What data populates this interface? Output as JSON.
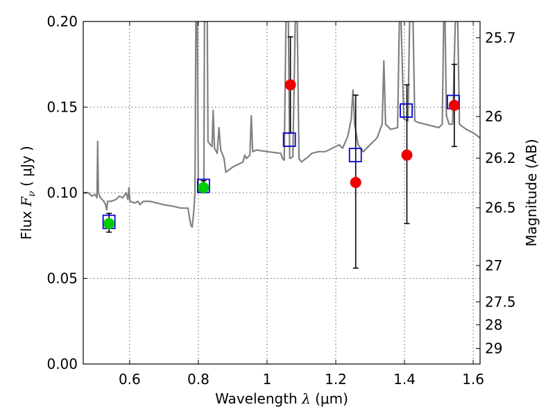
{
  "chart_data": {
    "type": "scatter",
    "title": "",
    "xlabel_prefix": "Wavelength ",
    "xlabel_var": "λ",
    "xlabel_unit": " (μm)",
    "ylabel_prefix": "Flux ",
    "ylabel_var": "F",
    "ylabel_sub": "ν",
    "ylabel_unit": " ( μJy )",
    "y2label": "Magnitude (AB)",
    "xlim": [
      0.465,
      1.62
    ],
    "ylim": [
      0.0,
      0.2
    ],
    "grid": true,
    "x_ticks": [
      0.6,
      0.8,
      1.0,
      1.2,
      1.4,
      1.6
    ],
    "x_tick_labels": [
      "0.6",
      "0.8",
      "1",
      "1.2",
      "1.4",
      "1.6"
    ],
    "y_ticks": [
      0.0,
      0.05,
      0.1,
      0.15,
      0.2
    ],
    "y_tick_labels": [
      "0.00",
      "0.05",
      "0.10",
      "0.15",
      "0.20"
    ],
    "y2_ticks": [
      {
        "flux": 0.1905,
        "label": "25.7"
      },
      {
        "flux": 0.1445,
        "label": "26"
      },
      {
        "flux": 0.1202,
        "label": "26.2"
      },
      {
        "flux": 0.0912,
        "label": "26.5"
      },
      {
        "flux": 0.0575,
        "label": "27"
      },
      {
        "flux": 0.0363,
        "label": "27.5"
      },
      {
        "flux": 0.0229,
        "label": "28"
      },
      {
        "flux": 0.0091,
        "label": "29"
      }
    ],
    "model_spectrum": {
      "color": "#808080",
      "points": [
        [
          0.465,
          0.1
        ],
        [
          0.48,
          0.1
        ],
        [
          0.49,
          0.098
        ],
        [
          0.5,
          0.099
        ],
        [
          0.505,
          0.097
        ],
        [
          0.507,
          0.13
        ],
        [
          0.509,
          0.1
        ],
        [
          0.515,
          0.097
        ],
        [
          0.525,
          0.095
        ],
        [
          0.53,
          0.093
        ],
        [
          0.533,
          0.09
        ],
        [
          0.536,
          0.095
        ],
        [
          0.545,
          0.095
        ],
        [
          0.56,
          0.096
        ],
        [
          0.57,
          0.098
        ],
        [
          0.58,
          0.097
        ],
        [
          0.59,
          0.1
        ],
        [
          0.595,
          0.096
        ],
        [
          0.598,
          0.103
        ],
        [
          0.601,
          0.095
        ],
        [
          0.615,
          0.094
        ],
        [
          0.625,
          0.095
        ],
        [
          0.63,
          0.093
        ],
        [
          0.64,
          0.095
        ],
        [
          0.66,
          0.095
        ],
        [
          0.7,
          0.093
        ],
        [
          0.73,
          0.092
        ],
        [
          0.75,
          0.091
        ],
        [
          0.77,
          0.091
        ],
        [
          0.778,
          0.081
        ],
        [
          0.782,
          0.08
        ],
        [
          0.787,
          0.09
        ],
        [
          0.79,
          0.1
        ],
        [
          0.793,
          0.2
        ],
        [
          0.797,
          0.2
        ],
        [
          0.8,
          0.1
        ],
        [
          0.81,
          0.102
        ],
        [
          0.816,
          0.103
        ],
        [
          0.818,
          0.2
        ],
        [
          0.826,
          0.2
        ],
        [
          0.828,
          0.13
        ],
        [
          0.835,
          0.128
        ],
        [
          0.84,
          0.127
        ],
        [
          0.843,
          0.148
        ],
        [
          0.847,
          0.126
        ],
        [
          0.855,
          0.123
        ],
        [
          0.86,
          0.138
        ],
        [
          0.865,
          0.125
        ],
        [
          0.875,
          0.12
        ],
        [
          0.88,
          0.112
        ],
        [
          0.9,
          0.115
        ],
        [
          0.92,
          0.117
        ],
        [
          0.93,
          0.118
        ],
        [
          0.935,
          0.122
        ],
        [
          0.94,
          0.12
        ],
        [
          0.95,
          0.122
        ],
        [
          0.954,
          0.145
        ],
        [
          0.958,
          0.124
        ],
        [
          0.97,
          0.125
        ],
        [
          1.0,
          0.124
        ],
        [
          1.04,
          0.123
        ],
        [
          1.045,
          0.12
        ],
        [
          1.05,
          0.119
        ],
        [
          1.055,
          0.2
        ],
        [
          1.062,
          0.2
        ],
        [
          1.066,
          0.12
        ],
        [
          1.075,
          0.121
        ],
        [
          1.082,
          0.2
        ],
        [
          1.088,
          0.2
        ],
        [
          1.093,
          0.12
        ],
        [
          1.1,
          0.118
        ],
        [
          1.12,
          0.121
        ],
        [
          1.13,
          0.123
        ],
        [
          1.15,
          0.124
        ],
        [
          1.17,
          0.124
        ],
        [
          1.19,
          0.126
        ],
        [
          1.2,
          0.127
        ],
        [
          1.21,
          0.128
        ],
        [
          1.22,
          0.126
        ],
        [
          1.235,
          0.133
        ],
        [
          1.245,
          0.143
        ],
        [
          1.25,
          0.16
        ],
        [
          1.255,
          0.14
        ],
        [
          1.265,
          0.128
        ],
        [
          1.28,
          0.124
        ],
        [
          1.3,
          0.128
        ],
        [
          1.32,
          0.132
        ],
        [
          1.335,
          0.14
        ],
        [
          1.34,
          0.177
        ],
        [
          1.345,
          0.14
        ],
        [
          1.36,
          0.137
        ],
        [
          1.38,
          0.138
        ],
        [
          1.385,
          0.2
        ],
        [
          1.39,
          0.2
        ],
        [
          1.398,
          0.143
        ],
        [
          1.41,
          0.142
        ],
        [
          1.415,
          0.2
        ],
        [
          1.425,
          0.2
        ],
        [
          1.43,
          0.142
        ],
        [
          1.44,
          0.141
        ],
        [
          1.46,
          0.14
        ],
        [
          1.5,
          0.138
        ],
        [
          1.51,
          0.14
        ],
        [
          1.514,
          0.2
        ],
        [
          1.518,
          0.2
        ],
        [
          1.522,
          0.145
        ],
        [
          1.53,
          0.14
        ],
        [
          1.54,
          0.14
        ],
        [
          1.548,
          0.2
        ],
        [
          1.555,
          0.2
        ],
        [
          1.56,
          0.14
        ],
        [
          1.58,
          0.137
        ],
        [
          1.6,
          0.135
        ],
        [
          1.62,
          0.132
        ]
      ]
    },
    "model_bands": [
      {
        "x": 0.54,
        "y": 0.083,
        "color": "#0000cc"
      },
      {
        "x": 0.815,
        "y": 0.104,
        "color": "#0000cc"
      },
      {
        "x": 1.065,
        "y": 0.131,
        "color": "#0000cc"
      },
      {
        "x": 1.257,
        "y": 0.122,
        "color": "#0000cc"
      },
      {
        "x": 1.405,
        "y": 0.148,
        "color": "#0000cc"
      },
      {
        "x": 1.542,
        "y": 0.153,
        "color": "#0000cc"
      }
    ],
    "observed": [
      {
        "x": 0.54,
        "y": 0.082,
        "err_low": 0.077,
        "err_high": 0.088,
        "color": "#00cc00"
      },
      {
        "x": 0.815,
        "y": 0.103,
        "err_low": 0.1,
        "err_high": 0.107,
        "color": "#00cc00"
      },
      {
        "x": 1.068,
        "y": 0.163,
        "err_low": 0.135,
        "err_high": 0.191,
        "color": "#ee0000"
      },
      {
        "x": 1.258,
        "y": 0.106,
        "err_low": 0.056,
        "err_high": 0.157,
        "color": "#ee0000"
      },
      {
        "x": 1.407,
        "y": 0.122,
        "err_low": 0.082,
        "err_high": 0.163,
        "color": "#ee0000"
      },
      {
        "x": 1.545,
        "y": 0.151,
        "err_low": 0.127,
        "err_high": 0.175,
        "color": "#ee0000"
      }
    ]
  }
}
